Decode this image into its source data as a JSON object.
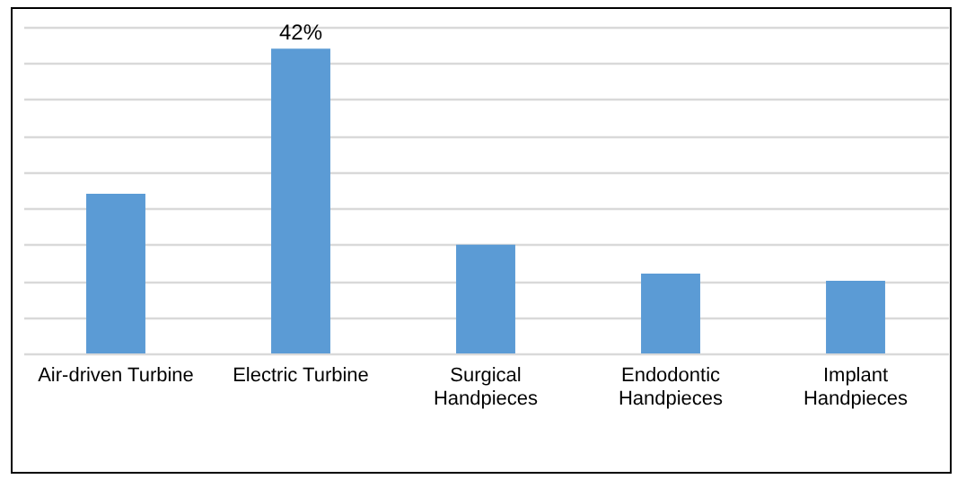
{
  "chart_data": {
    "type": "bar",
    "categories": [
      "Air-driven Turbine",
      "Electric Turbine",
      "Surgical\nHandpieces",
      "Endodontic\nHandpieces",
      "Implant\nHandpieces"
    ],
    "values": [
      22,
      42,
      15,
      11,
      10
    ],
    "value_labels": [
      null,
      "42%",
      null,
      null,
      null
    ],
    "color": "#5b9bd5",
    "grid": true,
    "tick_labels": "x"
  }
}
